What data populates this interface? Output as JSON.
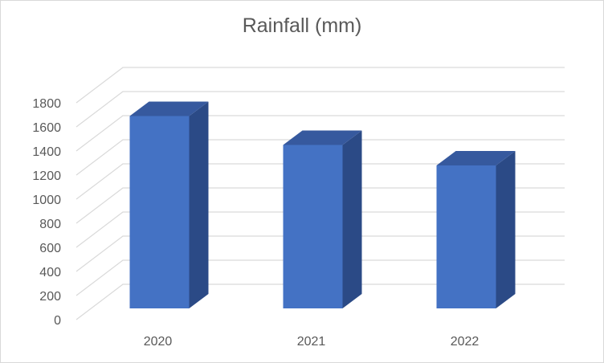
{
  "chart_data": {
    "type": "bar",
    "style": "3d-clustered-column",
    "title": "Rainfall (mm)",
    "categories": [
      "2020",
      "2021",
      "2022"
    ],
    "series": [
      {
        "values": [
          1650,
          1410,
          1240
        ]
      }
    ],
    "ylim": [
      0,
      1800
    ],
    "yticks": [
      0,
      200,
      400,
      600,
      800,
      1000,
      1200,
      1400,
      1600,
      1800
    ],
    "grid": true,
    "legend": "none",
    "colors": {
      "bar_front": "#4472C4",
      "bar_side": "#2B4A86",
      "bar_top": "#36599E",
      "grid": "#d9d9d9",
      "text": "#595959"
    }
  }
}
